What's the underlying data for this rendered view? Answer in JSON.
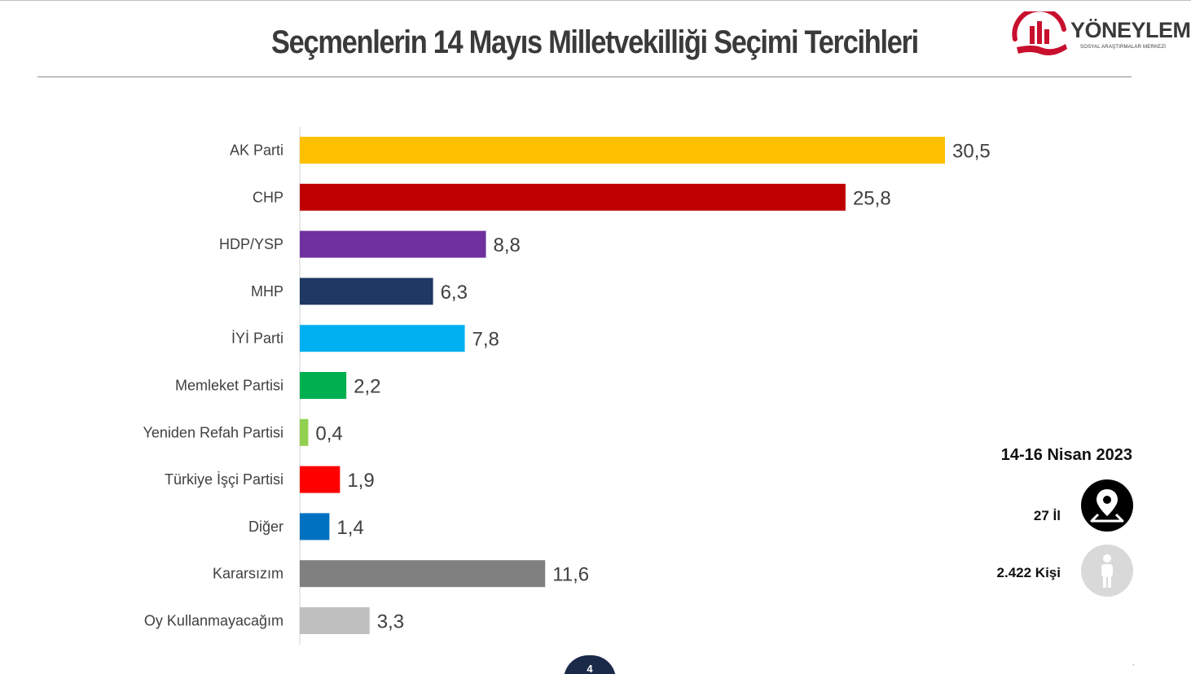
{
  "title": "Seçmenlerin 14 Mayıs Milletvekilliği Seçimi Tercihleri",
  "logo": {
    "name": "YÖNEYLEM",
    "subtitle": "SOSYAL ARAŞTIRMALAR MERKEZİ"
  },
  "info": {
    "date": "14-16 Nisan 2023",
    "provinces": "27 İl",
    "people": "2.422 Kişi"
  },
  "page_number": "4",
  "colors": {
    "accent": "#1c2a4a",
    "logo_red": "#c8102e"
  },
  "chart_data": {
    "type": "bar",
    "orientation": "horizontal",
    "categories": [
      "AK Parti",
      "CHP",
      "HDP/YSP",
      "MHP",
      "İYİ Parti",
      "Memleket Partisi",
      "Yeniden Refah Partisi",
      "Türkiye İşçi Partisi",
      "Diğer",
      "Kararsızım",
      "Oy Kullanmayacağım"
    ],
    "values": [
      30.5,
      25.8,
      8.8,
      6.3,
      7.8,
      2.2,
      0.4,
      1.9,
      1.4,
      11.6,
      3.3
    ],
    "value_labels": [
      "30,5",
      "25,8",
      "8,8",
      "6,3",
      "7,8",
      "2,2",
      "0,4",
      "1,9",
      "1,4",
      "11,6",
      "3,3"
    ],
    "colors": [
      "#FFC000",
      "#C00000",
      "#7030A0",
      "#1F3864",
      "#00B0F0",
      "#00B050",
      "#92D050",
      "#FF0000",
      "#0070C0",
      "#808080",
      "#BFBFBF"
    ],
    "xlim": [
      0,
      30.5
    ],
    "grid": false,
    "legend": "none"
  }
}
